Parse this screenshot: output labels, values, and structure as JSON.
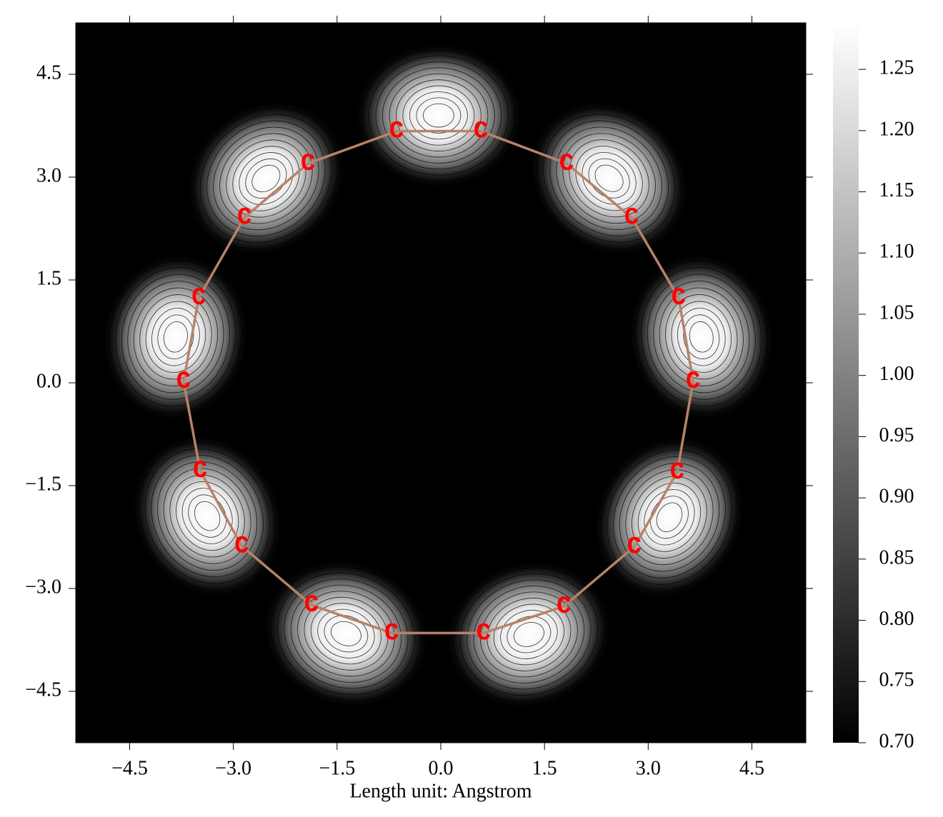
{
  "chart_data": {
    "type": "contour",
    "xlabel": "Length unit: Angstrom",
    "xlim": [
      -5.28,
      5.28
    ],
    "ylim": [
      -5.25,
      5.25
    ],
    "xticks": [
      {
        "value": -4.5,
        "label": "−4.5"
      },
      {
        "value": -3.0,
        "label": "−3.0"
      },
      {
        "value": -1.5,
        "label": "−1.5"
      },
      {
        "value": 0,
        "label": "0.0"
      },
      1.5,
      {
        "value": 3.0,
        "label": "3.0"
      },
      4.5
    ],
    "yticks": [
      {
        "value": -4.5,
        "label": "−4.5"
      },
      {
        "value": -3.0,
        "label": "−3.0"
      },
      {
        "value": -1.5,
        "label": "−1.5"
      },
      {
        "value": 0,
        "label": "0.0"
      },
      1.5,
      {
        "value": 3.0,
        "label": "3.0"
      },
      4.5
    ],
    "clim": [
      0.7,
      1.288
    ],
    "cticks": [
      {
        "value": 0.7,
        "label": "0.70"
      },
      0.75,
      {
        "value": 0.8,
        "label": "0.80"
      },
      0.85,
      {
        "value": 0.9,
        "label": "0.90"
      },
      0.95,
      {
        "value": 1.0,
        "label": "1.00"
      },
      1.05,
      {
        "value": 1.1,
        "label": "1.10"
      },
      1.15,
      {
        "value": 1.2,
        "label": "1.20"
      },
      1.25
    ],
    "atom_color": "#ff0000",
    "bond_color": "#b8826a",
    "atoms": [
      {
        "label": "C",
        "x": -0.64,
        "y": 3.67
      },
      {
        "label": "C",
        "x": 0.58,
        "y": 3.67
      },
      {
        "label": "C",
        "x": 1.82,
        "y": 3.2
      },
      {
        "label": "C",
        "x": 2.76,
        "y": 2.41
      },
      {
        "label": "C",
        "x": 3.44,
        "y": 1.24
      },
      {
        "label": "C",
        "x": 3.65,
        "y": 0.02
      },
      {
        "label": "C",
        "x": 3.42,
        "y": -1.3
      },
      {
        "label": "C",
        "x": 2.8,
        "y": -2.39
      },
      {
        "label": "C",
        "x": 1.78,
        "y": -3.26
      },
      {
        "label": "C",
        "x": 0.62,
        "y": -3.65
      },
      {
        "label": "C",
        "x": -0.71,
        "y": -3.65
      },
      {
        "label": "C",
        "x": -1.87,
        "y": -3.24
      },
      {
        "label": "C",
        "x": -2.88,
        "y": -2.38
      },
      {
        "label": "C",
        "x": -3.48,
        "y": -1.28
      },
      {
        "label": "C",
        "x": -3.72,
        "y": 0.02
      },
      {
        "label": "C",
        "x": -3.5,
        "y": 1.24
      },
      {
        "label": "C",
        "x": -2.84,
        "y": 2.41
      },
      {
        "label": "C",
        "x": -1.92,
        "y": 3.2
      }
    ]
  }
}
